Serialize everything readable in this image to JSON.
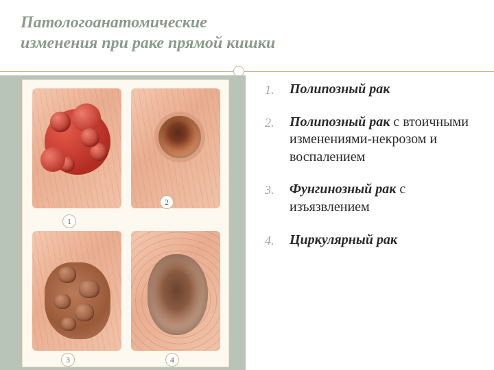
{
  "title_line1": "Патологоанатомические",
  "title_line2": "изменения при раке прямой кишки",
  "accent_color": "#8a9a8a",
  "panel_color": "#b8c4b8",
  "divider_color": "#c9b48f",
  "illustration": {
    "background": "#fdf9f0",
    "tissue_base": "#f0c2a8",
    "labels": {
      "n1": "1",
      "n2": "2",
      "n3": "3",
      "n4": "4"
    },
    "panels": [
      {
        "id": 1,
        "lesion_colors": [
          "#e45a4a",
          "#b32c22"
        ]
      },
      {
        "id": 2,
        "lesion_colors": [
          "#5a2a1a",
          "#c77a50"
        ]
      },
      {
        "id": 3,
        "lesion_colors": [
          "#b97a58",
          "#8f5236"
        ]
      },
      {
        "id": 4,
        "lesion_colors": [
          "#6a4430",
          "#caa088"
        ]
      }
    ]
  },
  "list": {
    "number_color": "#9aa89a",
    "text_color": "#2a2a2a",
    "fontsize": 20,
    "items": [
      {
        "bold": "Полипозный рак",
        "rest": ""
      },
      {
        "bold": "Полипозный рак",
        "rest": " с втоичными изменениями-некрозом и воспалением"
      },
      {
        "bold": "Фунгинозный рак",
        "rest": " с изъязвлением"
      },
      {
        "bold": "Циркулярный рак",
        "rest": ""
      }
    ]
  }
}
